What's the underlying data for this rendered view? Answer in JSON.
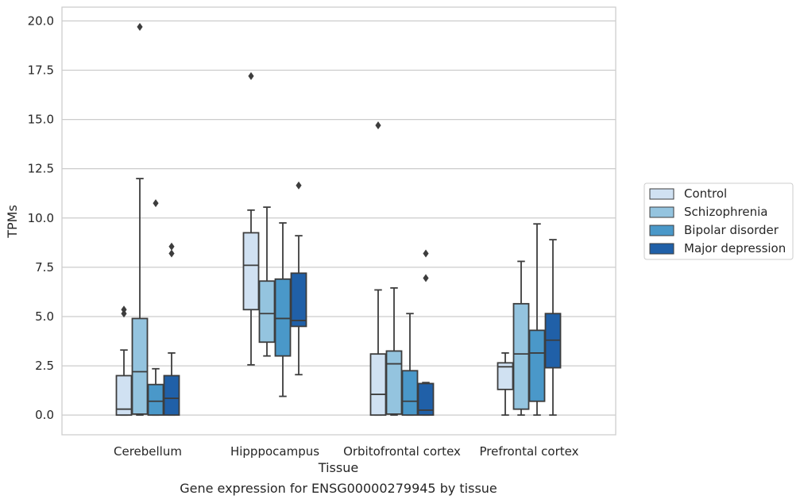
{
  "chart_data": {
    "type": "box",
    "title": "",
    "caption": "Gene expression for ENSG00000279945 by tissue",
    "xlabel": "Tissue",
    "ylabel": "TPMs",
    "ylim": [
      -1.0,
      20.7
    ],
    "yticks": [
      "0.0",
      "2.5",
      "5.0",
      "7.5",
      "10.0",
      "12.5",
      "15.0",
      "17.5",
      "20.0"
    ],
    "grid": "horizontal",
    "legend_position": "right",
    "categories": [
      "Cerebellum",
      "Hipppocampus",
      "Orbitofrontal cortex",
      "Prefrontal cortex"
    ],
    "series": [
      {
        "name": "Control",
        "color": "#d0e1f2",
        "boxes": [
          {
            "whisker_low": 0.0,
            "q1": 0.0,
            "median": 0.3,
            "q3": 2.0,
            "whisker_high": 3.3,
            "outliers": [
              5.15,
              5.35
            ]
          },
          {
            "whisker_low": 2.55,
            "q1": 5.35,
            "median": 7.6,
            "q3": 9.25,
            "whisker_high": 10.4,
            "outliers": [
              17.2
            ]
          },
          {
            "whisker_low": 0.0,
            "q1": 0.0,
            "median": 1.05,
            "q3": 3.1,
            "whisker_high": 6.35,
            "outliers": [
              14.7
            ]
          },
          {
            "whisker_low": 0.0,
            "q1": 1.3,
            "median": 2.45,
            "q3": 2.65,
            "whisker_high": 3.15,
            "outliers": []
          }
        ]
      },
      {
        "name": "Schizophrenia",
        "color": "#94c4df",
        "boxes": [
          {
            "whisker_low": 0.0,
            "q1": 0.05,
            "median": 2.2,
            "q3": 4.9,
            "whisker_high": 12.0,
            "outliers": [
              19.7
            ]
          },
          {
            "whisker_low": 3.0,
            "q1": 3.7,
            "median": 5.15,
            "q3": 6.8,
            "whisker_high": 10.55,
            "outliers": []
          },
          {
            "whisker_low": 0.0,
            "q1": 0.05,
            "median": 2.6,
            "q3": 3.25,
            "whisker_high": 6.45,
            "outliers": []
          },
          {
            "whisker_low": 0.0,
            "q1": 0.3,
            "median": 3.1,
            "q3": 5.65,
            "whisker_high": 7.8,
            "outliers": []
          }
        ]
      },
      {
        "name": "Bipolar disorder",
        "color": "#4a98c9",
        "boxes": [
          {
            "whisker_low": 0.0,
            "q1": 0.0,
            "median": 0.7,
            "q3": 1.55,
            "whisker_high": 2.35,
            "outliers": [
              10.75
            ]
          },
          {
            "whisker_low": 0.95,
            "q1": 3.0,
            "median": 4.9,
            "q3": 6.9,
            "whisker_high": 9.75,
            "outliers": []
          },
          {
            "whisker_low": 0.0,
            "q1": 0.0,
            "median": 0.7,
            "q3": 2.25,
            "whisker_high": 5.15,
            "outliers": []
          },
          {
            "whisker_low": 0.0,
            "q1": 0.7,
            "median": 3.15,
            "q3": 4.3,
            "whisker_high": 9.7,
            "outliers": []
          }
        ]
      },
      {
        "name": "Major depression",
        "color": "#2060a8",
        "boxes": [
          {
            "whisker_low": 0.0,
            "q1": 0.0,
            "median": 0.85,
            "q3": 2.0,
            "whisker_high": 3.15,
            "outliers": [
              8.2,
              8.55
            ]
          },
          {
            "whisker_low": 2.05,
            "q1": 4.5,
            "median": 4.8,
            "q3": 7.2,
            "whisker_high": 9.1,
            "outliers": [
              11.65
            ]
          },
          {
            "whisker_low": 0.0,
            "q1": 0.0,
            "median": 0.25,
            "q3": 1.6,
            "whisker_high": 1.65,
            "outliers": [
              6.95,
              8.2
            ]
          },
          {
            "whisker_low": 0.0,
            "q1": 2.4,
            "median": 3.8,
            "q3": 5.15,
            "whisker_high": 8.9,
            "outliers": []
          }
        ]
      }
    ]
  }
}
